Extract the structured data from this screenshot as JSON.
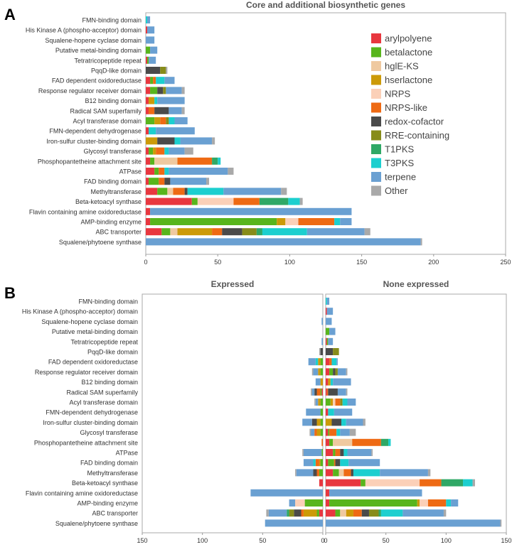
{
  "colors": {
    "arylpolyene": "#e8373f",
    "betalactone": "#58b51c",
    "hglE-KS": "#efc9a0",
    "hserlactone": "#cc9a08",
    "NRPS": "#fbd0b8",
    "NRPS-like": "#ee6a14",
    "redox-cofactor": "#4a4a4a",
    "RRE-containing": "#878c1a",
    "T1PKS": "#2fa866",
    "T3PKS": "#1ccfcf",
    "terpene": "#6aa0d2",
    "Other": "#a9a9a9"
  },
  "chart_data": {
    "type": "bar",
    "orientation": "horizontal-stacked",
    "gene_types": [
      "arylpolyene",
      "betalactone",
      "hglE-KS",
      "hserlactone",
      "NRPS",
      "NRPS-like",
      "redox-cofactor",
      "RRE-containing",
      "T1PKS",
      "T3PKS",
      "terpene",
      "Other"
    ],
    "categories": [
      "FMN-binding domain",
      "His Kinase A (phospho-acceptor) domain",
      "Squalene-hopene cyclase domain",
      "Putative metal-binding domain",
      "Tetratricopeptide repeat",
      "PqqD-like domain",
      "FAD dependent oxidoreductase",
      "Response regulator receiver domain",
      "B12 binding domain",
      "Radical SAM superfamily",
      "Acyl transferase domain",
      "FMN-dependent dehydrogenase",
      "Iron-sulfur cluster-binding domain",
      "Glycosyl transferase",
      "Phosphopantetheine attachment site",
      "ATPase",
      "FAD binding domain",
      "Methyltransferase",
      "Beta-ketoacyl synthase",
      "Flavin containing amine oxidoreductase",
      "AMP-binding enzyme",
      "ABC transporter",
      "Squalene/phytoene synthase"
    ],
    "panels": [
      {
        "label": "A",
        "title": "Core and additional biosynthetic genes",
        "xlim": [
          0,
          250
        ],
        "xticks": [
          "0",
          "50",
          "100",
          "150",
          "200",
          "250"
        ],
        "values": [
          [
            0,
            0,
            0,
            0,
            0,
            0,
            0,
            0,
            0,
            1,
            2,
            0
          ],
          [
            1,
            0,
            0,
            0,
            0,
            0,
            0,
            0,
            0,
            0,
            5,
            0
          ],
          [
            0,
            0,
            0,
            0,
            0,
            0,
            0,
            0,
            0,
            0,
            6,
            0
          ],
          [
            0,
            3,
            0,
            0,
            0,
            0,
            0,
            0,
            0,
            0,
            5,
            0
          ],
          [
            1,
            1,
            0,
            0,
            0,
            0,
            0,
            0,
            0,
            0,
            5,
            0
          ],
          [
            0,
            0,
            0,
            0,
            0,
            0,
            10,
            4,
            0,
            0,
            0,
            1
          ],
          [
            3,
            2,
            0,
            0,
            0,
            2,
            0,
            0,
            0,
            6,
            7,
            0
          ],
          [
            3,
            5,
            0,
            0,
            0,
            0,
            4,
            2,
            0,
            0,
            11,
            2
          ],
          [
            2,
            0,
            0,
            4,
            0,
            0,
            0,
            0,
            0,
            2,
            19,
            0
          ],
          [
            2,
            0,
            0,
            0,
            0,
            4,
            10,
            0,
            0,
            0,
            9,
            2
          ],
          [
            0,
            6,
            0,
            4,
            0,
            4,
            0,
            2,
            0,
            4,
            9,
            0
          ],
          [
            2,
            0,
            0,
            0,
            0,
            0,
            0,
            0,
            0,
            5,
            27,
            0
          ],
          [
            0,
            0,
            0,
            8,
            0,
            0,
            12,
            0,
            0,
            4,
            22,
            2
          ],
          [
            2,
            3,
            0,
            2,
            0,
            6,
            0,
            0,
            0,
            3,
            11,
            6
          ],
          [
            3,
            3,
            16,
            0,
            0,
            24,
            0,
            0,
            4,
            2,
            0,
            0
          ],
          [
            6,
            3,
            0,
            0,
            0,
            4,
            0,
            0,
            0,
            3,
            41,
            4
          ],
          [
            2,
            7,
            0,
            0,
            0,
            4,
            4,
            0,
            0,
            0,
            25,
            2
          ],
          [
            8,
            7,
            4,
            0,
            0,
            8,
            2,
            0,
            0,
            25,
            40,
            4
          ],
          [
            32,
            4,
            0,
            0,
            25,
            18,
            0,
            0,
            20,
            8,
            0,
            2
          ],
          [
            3,
            0,
            0,
            0,
            0,
            0,
            0,
            0,
            0,
            0,
            140,
            0
          ],
          [
            3,
            88,
            0,
            6,
            9,
            25,
            0,
            0,
            0,
            4,
            8,
            0
          ],
          [
            11,
            6,
            5,
            24,
            0,
            7,
            14,
            10,
            4,
            31,
            40,
            4
          ],
          [
            0,
            0,
            0,
            0,
            0,
            0,
            0,
            0,
            0,
            0,
            191,
            1
          ]
        ]
      },
      {
        "label": "B",
        "title": "Expressed",
        "xlim": [
          150,
          0
        ],
        "xticks": [
          "150",
          "100",
          "50",
          "0"
        ],
        "values": [
          [
            0,
            0,
            0,
            0,
            0,
            0,
            0,
            0,
            0,
            0,
            0,
            0
          ],
          [
            0,
            0,
            0,
            0,
            0,
            0,
            0,
            0,
            0,
            0,
            0,
            0
          ],
          [
            0,
            0,
            0,
            0,
            0,
            0,
            0,
            0,
            0,
            0,
            1,
            0
          ],
          [
            0,
            0,
            0,
            0,
            0,
            0,
            0,
            0,
            0,
            0,
            0,
            0
          ],
          [
            0,
            0,
            0,
            0,
            0,
            0,
            0,
            0,
            0,
            0,
            1,
            0
          ],
          [
            0,
            0,
            0,
            0,
            0,
            0,
            2,
            0,
            0,
            0,
            0,
            1
          ],
          [
            0,
            2,
            0,
            2,
            0,
            0,
            0,
            0,
            0,
            2,
            6,
            0
          ],
          [
            0,
            2,
            0,
            2,
            0,
            0,
            0,
            0,
            0,
            0,
            4,
            1
          ],
          [
            0,
            0,
            0,
            2,
            0,
            0,
            0,
            0,
            0,
            0,
            4,
            0
          ],
          [
            1,
            1,
            0,
            0,
            0,
            3,
            2,
            0,
            0,
            0,
            2,
            1
          ],
          [
            0,
            2,
            0,
            2,
            0,
            0,
            0,
            0,
            0,
            0,
            2,
            1
          ],
          [
            0,
            2,
            0,
            0,
            0,
            0,
            0,
            0,
            0,
            0,
            12,
            0
          ],
          [
            0,
            2,
            0,
            3,
            0,
            0,
            4,
            0,
            0,
            0,
            8,
            0
          ],
          [
            0,
            2,
            0,
            3,
            0,
            2,
            0,
            0,
            0,
            0,
            3,
            1
          ],
          [
            0,
            0,
            0,
            0,
            0,
            1,
            0,
            0,
            0,
            0,
            0,
            0
          ],
          [
            0,
            1,
            0,
            0,
            0,
            0,
            0,
            0,
            0,
            0,
            15,
            1
          ],
          [
            0,
            2,
            0,
            1,
            0,
            3,
            0,
            0,
            0,
            2,
            8,
            0
          ],
          [
            0,
            3,
            0,
            0,
            0,
            2,
            3,
            0,
            0,
            0,
            14,
            1
          ],
          [
            3,
            0,
            0,
            0,
            0,
            0,
            0,
            0,
            0,
            0,
            0,
            0
          ],
          [
            0,
            0,
            0,
            0,
            0,
            0,
            0,
            0,
            0,
            0,
            60,
            0
          ],
          [
            0,
            15,
            0,
            0,
            8,
            0,
            0,
            0,
            0,
            0,
            5,
            0
          ],
          [
            3,
            2,
            0,
            11,
            0,
            2,
            6,
            4,
            2,
            0,
            15,
            2
          ],
          [
            0,
            0,
            0,
            0,
            0,
            0,
            0,
            0,
            0,
            0,
            48,
            0
          ]
        ]
      },
      {
        "label": "",
        "title": "None expressed",
        "xlim": [
          0,
          150
        ],
        "xticks": [
          "0",
          "50",
          "100",
          "150"
        ],
        "values": [
          [
            0,
            0,
            0,
            0,
            0,
            0,
            0,
            0,
            0,
            1,
            2,
            0
          ],
          [
            1,
            0,
            0,
            0,
            0,
            0,
            0,
            0,
            0,
            0,
            5,
            0
          ],
          [
            0,
            0,
            0,
            0,
            0,
            0,
            0,
            0,
            0,
            0,
            5,
            0
          ],
          [
            0,
            3,
            0,
            0,
            0,
            0,
            0,
            0,
            0,
            0,
            5,
            0
          ],
          [
            1,
            1,
            0,
            0,
            0,
            0,
            0,
            0,
            0,
            0,
            4,
            0
          ],
          [
            0,
            0,
            0,
            0,
            0,
            0,
            6,
            5,
            0,
            0,
            0,
            0
          ],
          [
            3,
            0,
            0,
            0,
            0,
            2,
            0,
            0,
            0,
            4,
            1,
            0
          ],
          [
            3,
            3,
            0,
            0,
            0,
            0,
            2,
            2,
            0,
            0,
            7,
            1
          ],
          [
            2,
            0,
            0,
            2,
            0,
            0,
            0,
            0,
            0,
            2,
            15,
            0
          ],
          [
            1,
            0,
            0,
            0,
            0,
            1,
            8,
            0,
            0,
            0,
            7,
            1
          ],
          [
            0,
            4,
            0,
            2,
            2,
            4,
            0,
            2,
            0,
            4,
            7,
            0
          ],
          [
            2,
            0,
            0,
            0,
            0,
            0,
            0,
            0,
            0,
            5,
            15,
            0
          ],
          [
            0,
            0,
            0,
            5,
            0,
            0,
            8,
            0,
            0,
            4,
            14,
            2
          ],
          [
            2,
            1,
            0,
            0,
            0,
            6,
            0,
            0,
            0,
            3,
            8,
            5
          ],
          [
            3,
            3,
            16,
            0,
            0,
            24,
            0,
            0,
            6,
            2,
            0,
            0
          ],
          [
            6,
            2,
            0,
            0,
            0,
            4,
            3,
            0,
            0,
            3,
            20,
            1
          ],
          [
            2,
            5,
            0,
            0,
            0,
            1,
            4,
            0,
            0,
            7,
            26,
            0
          ],
          [
            6,
            5,
            4,
            0,
            0,
            6,
            2,
            0,
            0,
            22,
            40,
            2
          ],
          [
            29,
            4,
            0,
            0,
            45,
            18,
            0,
            0,
            18,
            8,
            0,
            2
          ],
          [
            3,
            0,
            0,
            0,
            0,
            0,
            0,
            0,
            0,
            0,
            77,
            0
          ],
          [
            3,
            73,
            0,
            2,
            7,
            15,
            0,
            0,
            0,
            4,
            6,
            0
          ],
          [
            8,
            4,
            5,
            6,
            0,
            7,
            6,
            8,
            2,
            18,
            34,
            2
          ],
          [
            0,
            0,
            0,
            0,
            0,
            0,
            0,
            0,
            0,
            0,
            145,
            1
          ]
        ]
      }
    ]
  }
}
